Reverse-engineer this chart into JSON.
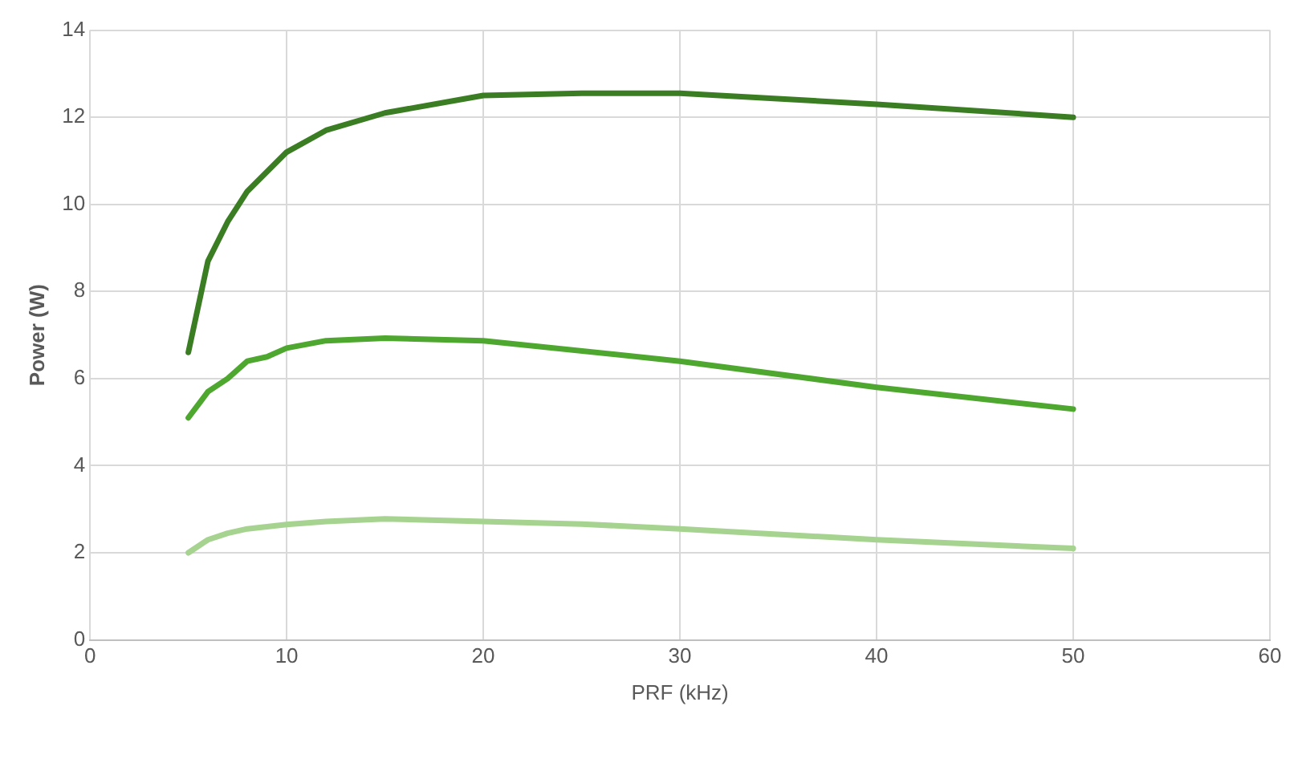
{
  "chart_data": {
    "type": "line",
    "xlabel": "PRF (kHz)",
    "ylabel": "Power (W)",
    "xlim": [
      0,
      60
    ],
    "xticks": [
      0,
      10,
      20,
      30,
      40,
      50,
      60
    ],
    "ylim": [
      0,
      14
    ],
    "yticks": [
      0,
      2,
      4,
      6,
      8,
      10,
      12,
      14
    ],
    "grid": true,
    "marker": "none",
    "line_style": "solid",
    "series": [
      {
        "color": "#3a7d22",
        "x": [
          5,
          6,
          7,
          8,
          10,
          12,
          15,
          20,
          25,
          30,
          40,
          50
        ],
        "values": [
          6.6,
          8.7,
          9.6,
          10.3,
          11.2,
          11.7,
          12.1,
          12.5,
          12.55,
          12.55,
          12.3,
          12.0
        ]
      },
      {
        "color": "#4ea72e",
        "x": [
          5,
          6,
          7,
          8,
          9,
          10,
          12,
          15,
          20,
          30,
          40,
          50
        ],
        "values": [
          5.1,
          5.7,
          6.0,
          6.4,
          6.5,
          6.7,
          6.87,
          6.93,
          6.87,
          6.4,
          5.8,
          5.3
        ]
      },
      {
        "color": "#a6d38f",
        "x": [
          5,
          6,
          7,
          8,
          10,
          12,
          15,
          20,
          25,
          30,
          40,
          50
        ],
        "values": [
          2.0,
          2.3,
          2.45,
          2.55,
          2.65,
          2.72,
          2.78,
          2.72,
          2.66,
          2.55,
          2.3,
          2.1
        ]
      }
    ]
  }
}
